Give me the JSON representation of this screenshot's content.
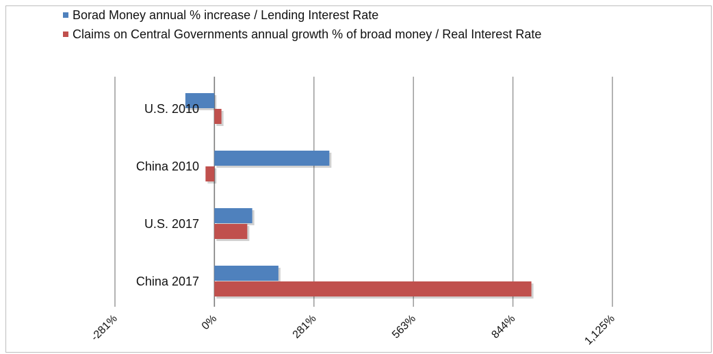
{
  "chart_data": {
    "type": "bar",
    "orientation": "horizontal",
    "categories": [
      "U.S. 2010",
      "China 2010",
      "U.S. 2017",
      "China 2017"
    ],
    "series": [
      {
        "name": "Borad Money annual % increase / Lending Interest Rate",
        "color": "#4f81bd",
        "values": [
          -82,
          325,
          107,
          181
        ]
      },
      {
        "name": "Claims on Central Governments annual growth % of broad money / Real Interest Rate",
        "color": "#c0504d",
        "values": [
          20,
          -25,
          93,
          896
        ]
      }
    ],
    "x_ticks": [
      "-281%",
      "0%",
      "281%",
      "563%",
      "844%",
      "1,125%"
    ],
    "xlim": [
      -281,
      1125
    ],
    "grid": true,
    "legend": "top-left"
  }
}
